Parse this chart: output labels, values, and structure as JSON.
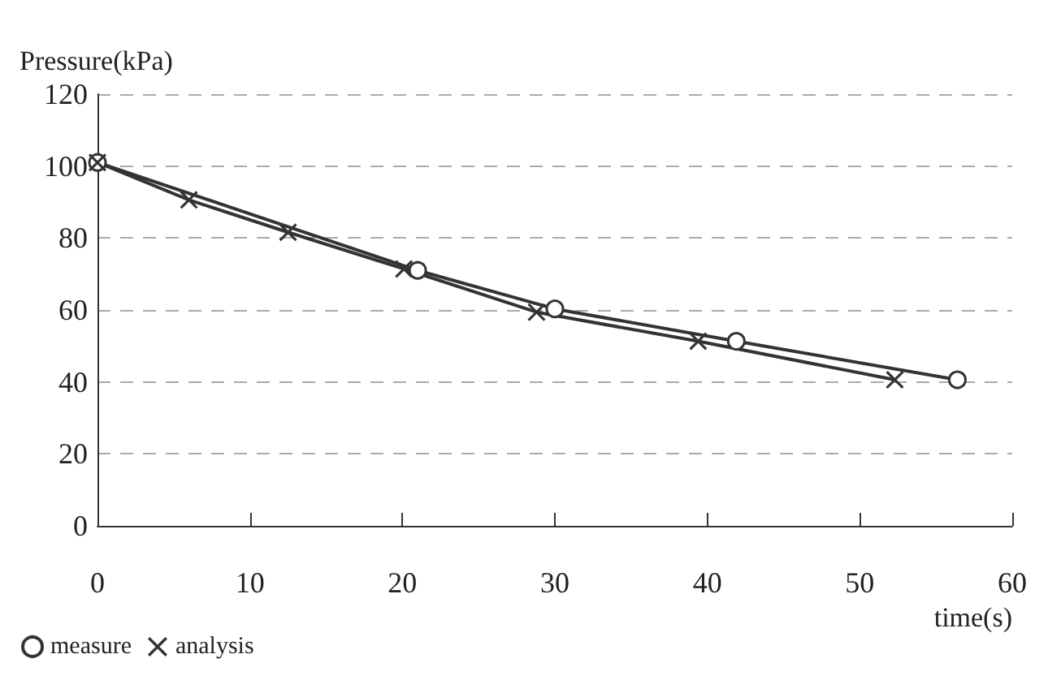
{
  "chart_data": {
    "type": "line",
    "xlabel": "time(s)",
    "ylabel": "Pressure(kPa)",
    "xlim": [
      0,
      60
    ],
    "xticks": [
      0,
      10,
      20,
      30,
      40,
      50,
      60
    ],
    "ylim": [
      0,
      120
    ],
    "yticks": [
      0,
      20,
      40,
      60,
      80,
      100,
      120
    ],
    "grid": "y",
    "legend": "bottom left",
    "line_style": "solid",
    "series": [
      {
        "name": "measure",
        "color": "#333333",
        "marker": "circle",
        "x": [
          0,
          21,
          30,
          41.9,
          56.4
        ],
        "values": [
          101,
          71,
          60.3,
          51.3,
          40.6
        ]
      },
      {
        "name": "analysis",
        "color": "#333333",
        "marker": "cross",
        "x": [
          0,
          6,
          12.5,
          20.1,
          28.8,
          39.4,
          52.3
        ],
        "values": [
          101,
          90.6,
          81.6,
          71.4,
          59.4,
          51.3,
          40.6
        ]
      }
    ]
  }
}
